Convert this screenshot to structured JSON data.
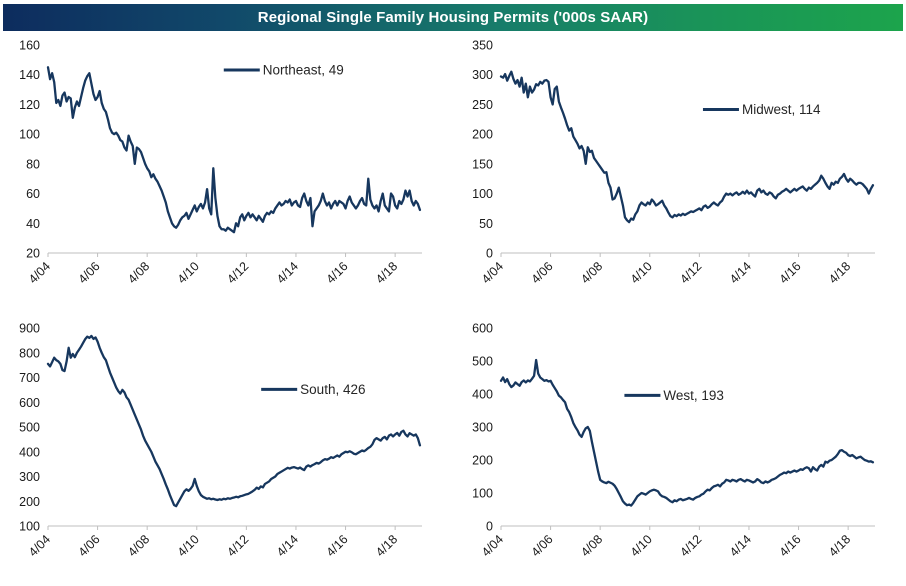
{
  "header": {
    "title": "Regional Single Family Housing Permits ('000s SAAR)"
  },
  "colors": {
    "line": "#17375e",
    "axis": "#bfbfbf",
    "tick_text": "#1a1a1a",
    "legend_text": "#262626",
    "title_text": "#ffffff",
    "title_gradient_left": "#0d2c5e",
    "title_gradient_mid": "#177c6a",
    "title_gradient_right": "#1ca44c"
  },
  "chart_data": [
    {
      "type": "line",
      "region": "Northeast",
      "legend_label": "Northeast, 49",
      "last_value": 49,
      "ylim": [
        20,
        160
      ],
      "ytick_interval": 20,
      "x_span_months": 181,
      "x_tick_months": [
        0,
        24,
        48,
        72,
        96,
        120,
        144,
        168
      ],
      "x_tick_labels": [
        "4/04",
        "4/06",
        "4/08",
        "4/10",
        "4/12",
        "4/14",
        "4/16",
        "4/18"
      ],
      "legend_frac": [
        0.47,
        0.12
      ],
      "values": [
        145,
        137,
        141,
        135,
        121,
        123,
        119,
        126,
        128,
        122,
        125,
        124,
        111,
        118,
        122,
        119,
        125,
        131,
        136,
        139,
        141,
        134,
        127,
        123,
        125,
        129,
        121,
        117,
        115,
        110,
        104,
        101,
        100,
        101,
        99,
        96,
        95,
        91,
        89,
        99,
        95,
        92,
        80,
        91,
        90,
        88,
        84,
        80,
        77,
        75,
        71,
        73,
        70,
        68,
        65,
        62,
        58,
        54,
        48,
        44,
        40,
        38,
        37,
        39,
        42,
        44,
        45,
        47,
        43,
        46,
        49,
        52,
        48,
        51,
        53,
        50,
        54,
        63,
        50,
        46,
        77,
        57,
        45,
        38,
        36,
        36,
        35,
        37,
        36,
        35,
        34,
        40,
        38,
        44,
        46,
        42,
        45,
        47,
        44,
        46,
        44,
        42,
        45,
        43,
        41,
        45,
        47,
        46,
        48,
        47,
        50,
        52,
        54,
        52,
        53,
        55,
        54,
        56,
        52,
        54,
        55,
        52,
        51,
        57,
        60,
        55,
        52,
        57,
        38,
        48,
        50,
        52,
        55,
        60,
        55,
        52,
        54,
        50,
        53,
        55,
        52,
        55,
        54,
        53,
        50,
        55,
        58,
        54,
        52,
        50,
        52,
        55,
        57,
        53,
        52,
        70,
        56,
        52,
        50,
        52,
        48,
        55,
        60,
        52,
        50,
        48,
        60,
        58,
        52,
        50,
        55,
        53,
        56,
        62,
        58,
        62,
        55,
        52,
        55,
        53,
        49
      ]
    },
    {
      "type": "line",
      "region": "Midwest",
      "legend_label": "Midwest, 114",
      "last_value": 114,
      "ylim": [
        0,
        350
      ],
      "ytick_interval": 50,
      "x_span_months": 181,
      "x_tick_months": [
        0,
        24,
        48,
        72,
        96,
        120,
        144,
        168
      ],
      "x_tick_labels": [
        "4/04",
        "4/06",
        "4/08",
        "4/10",
        "4/12",
        "4/14",
        "4/16",
        "4/18"
      ],
      "legend_frac": [
        0.54,
        0.31
      ],
      "values": [
        297,
        295,
        301,
        290,
        298,
        305,
        293,
        285,
        291,
        280,
        295,
        270,
        285,
        262,
        280,
        270,
        275,
        284,
        282,
        288,
        285,
        290,
        291,
        288,
        262,
        250,
        276,
        280,
        255,
        245,
        236,
        226,
        215,
        206,
        210,
        196,
        190,
        184,
        176,
        180,
        172,
        150,
        178,
        170,
        172,
        160,
        155,
        150,
        145,
        140,
        135,
        136,
        118,
        110,
        90,
        92,
        100,
        110,
        95,
        80,
        60,
        55,
        52,
        58,
        56,
        65,
        70,
        80,
        85,
        82,
        80,
        85,
        82,
        90,
        86,
        80,
        82,
        85,
        88,
        80,
        75,
        68,
        62,
        60,
        64,
        62,
        65,
        63,
        66,
        64,
        66,
        68,
        70,
        69,
        71,
        73,
        75,
        72,
        78,
        80,
        76,
        78,
        82,
        85,
        82,
        80,
        85,
        88,
        95,
        100,
        98,
        100,
        97,
        100,
        102,
        98,
        100,
        103,
        100,
        105,
        100,
        102,
        98,
        95,
        105,
        108,
        102,
        105,
        100,
        98,
        102,
        100,
        95,
        92,
        98,
        100,
        103,
        105,
        108,
        105,
        102,
        105,
        108,
        105,
        108,
        110,
        112,
        108,
        105,
        110,
        108,
        112,
        115,
        118,
        122,
        130,
        125,
        118,
        112,
        108,
        118,
        115,
        120,
        118,
        125,
        128,
        133,
        125,
        120,
        125,
        122,
        118,
        115,
        118,
        118,
        116,
        112,
        108,
        100,
        108,
        114
      ]
    },
    {
      "type": "line",
      "region": "South",
      "legend_label": "South, 426",
      "last_value": 426,
      "ylim": [
        100,
        900
      ],
      "ytick_interval": 100,
      "x_span_months": 181,
      "x_tick_months": [
        0,
        24,
        48,
        72,
        96,
        120,
        144,
        168
      ],
      "x_tick_labels": [
        "4/04",
        "4/06",
        "4/08",
        "4/10",
        "4/12",
        "4/14",
        "4/16",
        "4/18"
      ],
      "legend_frac": [
        0.57,
        0.31
      ],
      "values": [
        755,
        745,
        762,
        780,
        770,
        765,
        755,
        730,
        726,
        765,
        820,
        780,
        795,
        782,
        800,
        812,
        825,
        840,
        855,
        865,
        860,
        868,
        856,
        862,
        845,
        820,
        800,
        782,
        770,
        745,
        720,
        700,
        680,
        660,
        645,
        635,
        650,
        640,
        620,
        610,
        590,
        570,
        550,
        530,
        510,
        490,
        465,
        445,
        430,
        415,
        400,
        380,
        360,
        345,
        330,
        310,
        290,
        268,
        248,
        225,
        205,
        185,
        180,
        195,
        210,
        225,
        240,
        248,
        242,
        250,
        262,
        290,
        262,
        240,
        225,
        218,
        214,
        210,
        212,
        208,
        210,
        207,
        205,
        208,
        206,
        210,
        208,
        212,
        210,
        213,
        215,
        218,
        216,
        220,
        222,
        225,
        228,
        230,
        235,
        240,
        246,
        255,
        250,
        260,
        256,
        270,
        275,
        280,
        290,
        295,
        300,
        310,
        315,
        320,
        325,
        330,
        335,
        332,
        336,
        338,
        335,
        332,
        336,
        330,
        326,
        340,
        345,
        340,
        346,
        350,
        355,
        352,
        358,
        365,
        370,
        368,
        372,
        378,
        375,
        380,
        385,
        380,
        390,
        395,
        400,
        398,
        402,
        398,
        392,
        390,
        395,
        400,
        405,
        402,
        408,
        415,
        420,
        430,
        448,
        455,
        450,
        445,
        455,
        460,
        450,
        465,
        470,
        462,
        470,
        476,
        465,
        480,
        485,
        470,
        462,
        475,
        470,
        465,
        470,
        455,
        426
      ]
    },
    {
      "type": "line",
      "region": "West",
      "legend_label": "West, 193",
      "last_value": 193,
      "ylim": [
        0,
        600
      ],
      "ytick_interval": 100,
      "x_span_months": 181,
      "x_tick_months": [
        0,
        24,
        48,
        72,
        96,
        120,
        144,
        168
      ],
      "x_tick_labels": [
        "4/04",
        "4/06",
        "4/08",
        "4/10",
        "4/12",
        "4/14",
        "4/16",
        "4/18"
      ],
      "legend_frac": [
        0.33,
        0.34
      ],
      "values": [
        440,
        450,
        436,
        445,
        430,
        421,
        426,
        435,
        430,
        425,
        436,
        441,
        435,
        441,
        438,
        446,
        455,
        503,
        462,
        450,
        445,
        440,
        442,
        438,
        440,
        428,
        418,
        408,
        395,
        390,
        382,
        375,
        355,
        345,
        330,
        312,
        300,
        290,
        277,
        270,
        285,
        296,
        300,
        288,
        255,
        225,
        195,
        165,
        140,
        135,
        132,
        130,
        134,
        131,
        128,
        122,
        112,
        100,
        88,
        75,
        68,
        63,
        65,
        62,
        70,
        80,
        90,
        95,
        100,
        98,
        95,
        100,
        105,
        108,
        110,
        108,
        105,
        95,
        90,
        88,
        85,
        80,
        75,
        72,
        78,
        75,
        80,
        82,
        78,
        80,
        82,
        85,
        82,
        80,
        85,
        88,
        90,
        95,
        98,
        105,
        110,
        108,
        115,
        120,
        122,
        125,
        120,
        128,
        132,
        140,
        138,
        135,
        140,
        138,
        135,
        140,
        142,
        138,
        135,
        140,
        138,
        135,
        132,
        135,
        142,
        138,
        132,
        130,
        135,
        132,
        135,
        140,
        142,
        145,
        150,
        155,
        158,
        162,
        160,
        165,
        162,
        165,
        168,
        165,
        168,
        172,
        170,
        175,
        178,
        175,
        165,
        178,
        172,
        168,
        180,
        185,
        180,
        195,
        192,
        198,
        200,
        205,
        210,
        218,
        228,
        230,
        225,
        222,
        215,
        212,
        215,
        210,
        205,
        208,
        210,
        205,
        200,
        198,
        195,
        196,
        193
      ]
    }
  ]
}
